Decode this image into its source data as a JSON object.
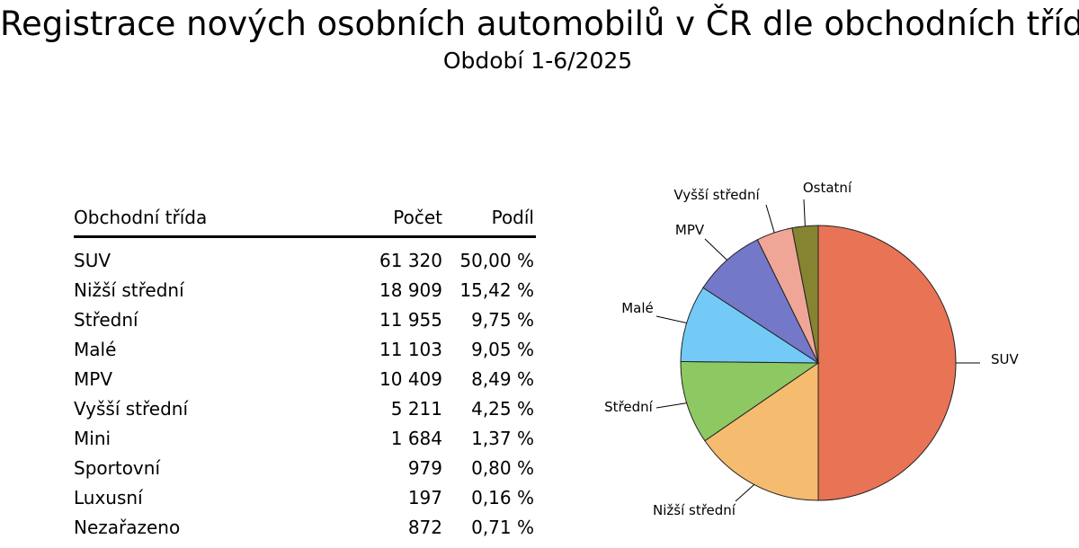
{
  "title": "Registrace nových osobních automobilů v ČR dle obchodních tříd",
  "subtitle": "Období 1-6/2025",
  "table": {
    "headers": [
      "Obchodní třída",
      "Počet",
      "Podíl"
    ],
    "rows": [
      {
        "cls": "SUV",
        "count": "61 320",
        "share": "50,00 %"
      },
      {
        "cls": "Nižší střední",
        "count": "18 909",
        "share": "15,42 %"
      },
      {
        "cls": "Střední",
        "count": "11 955",
        "share": "9,75 %"
      },
      {
        "cls": "Malé",
        "count": "11 103",
        "share": "9,05 %"
      },
      {
        "cls": "MPV",
        "count": "10 409",
        "share": "8,49 %"
      },
      {
        "cls": "Vyšší střední",
        "count": "5 211",
        "share": "4,25 %"
      },
      {
        "cls": "Mini",
        "count": "1 684",
        "share": "1,37 %"
      },
      {
        "cls": "Sportovní",
        "count": "979",
        "share": "0,80 %"
      },
      {
        "cls": "Luxusní",
        "count": "197",
        "share": "0,16 %"
      },
      {
        "cls": "Nezařazeno",
        "count": "872",
        "share": "0,71 %"
      }
    ]
  },
  "chart_data": {
    "type": "pie",
    "categories": [
      "SUV",
      "Nižší střední",
      "Střední",
      "Malé",
      "MPV",
      "Vyšší střední",
      "Ostatní"
    ],
    "values": [
      61320,
      18909,
      11955,
      11103,
      10409,
      5211,
      3732
    ],
    "colors": [
      "#E97355",
      "#F5BB6F",
      "#8DC862",
      "#74CAF6",
      "#7478C8",
      "#F0A697",
      "#878431"
    ],
    "start": "top, clockwise",
    "labels": "outside with leader lines"
  }
}
